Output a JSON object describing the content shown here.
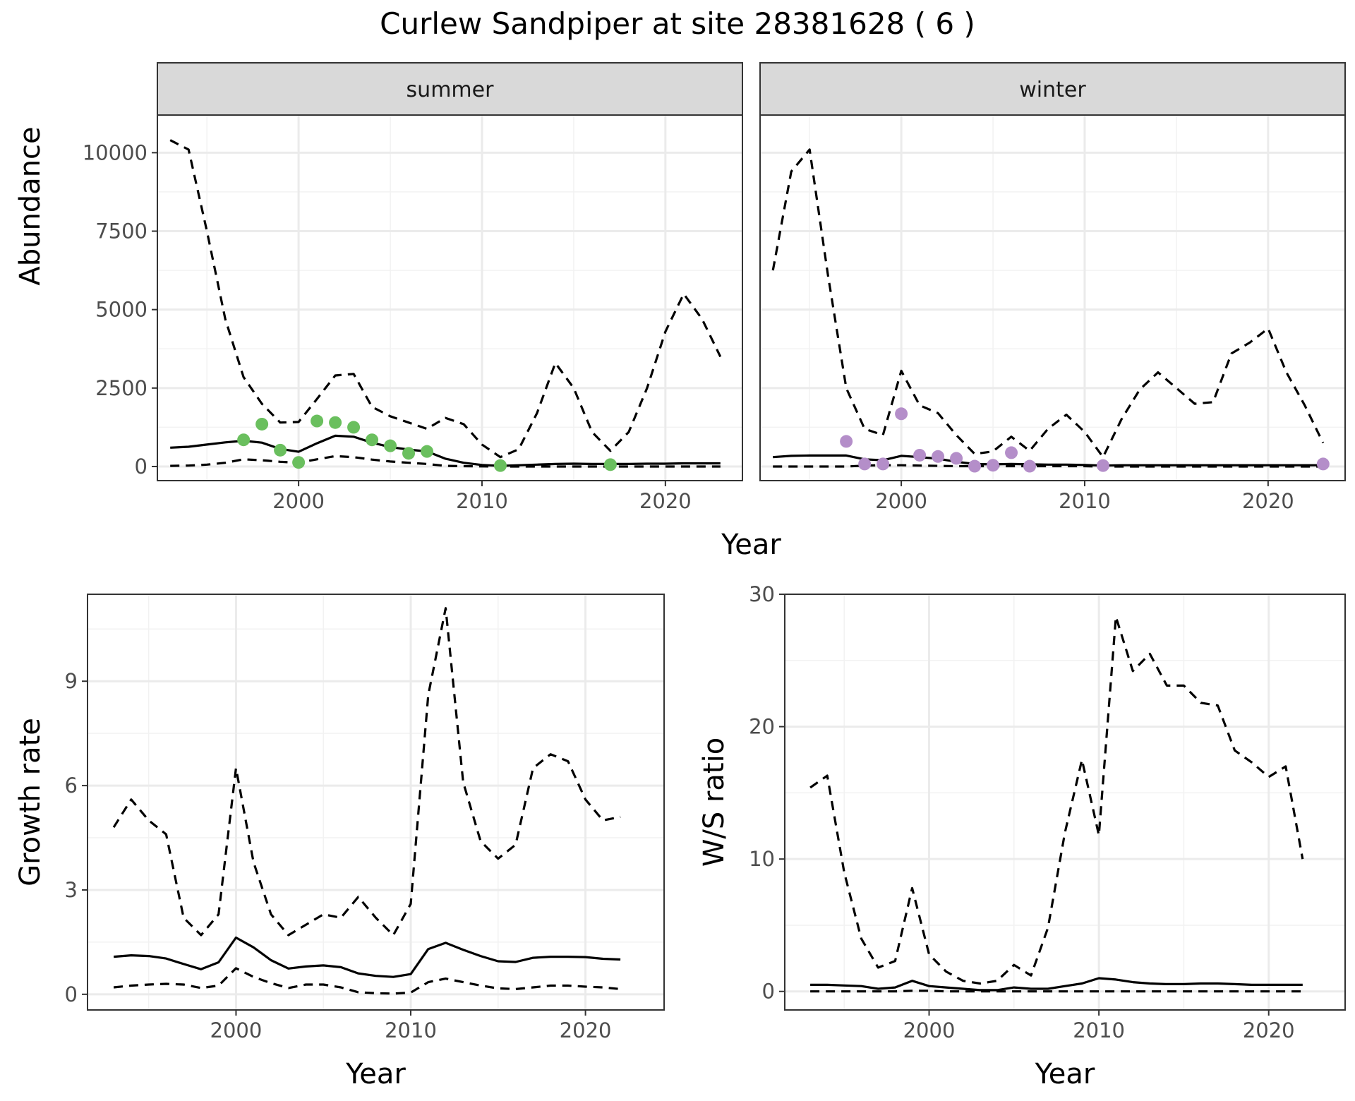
{
  "title": "Curlew Sandpiper at site 28381628 ( 6 )",
  "colors": {
    "summer_points": "#6abf5e",
    "winter_points": "#b48ec9",
    "lines": "#000000"
  },
  "chart_data": [
    {
      "id": "abundance",
      "type": "line",
      "facets": [
        "summer",
        "winter"
      ],
      "xlabel": "Year",
      "ylabel": "Abundance",
      "xlim": [
        1992.3,
        2024.2
      ],
      "ylim": [
        -450,
        11200
      ],
      "x_ticks": [
        2000,
        2010,
        2020
      ],
      "y_ticks": [
        0,
        2500,
        5000,
        7500,
        10000
      ],
      "grid": true,
      "panels": [
        {
          "facet": "summer",
          "series": [
            {
              "style": "solid",
              "x": [
                1993,
                1994,
                1995,
                1996,
                1997,
                1998,
                1999,
                2000,
                2001,
                2002,
                2003,
                2004,
                2005,
                2006,
                2007,
                2008,
                2009,
                2010,
                2011,
                2012,
                2013,
                2014,
                2015,
                2016,
                2017,
                2018,
                2019,
                2020,
                2021,
                2022,
                2023
              ],
              "y": [
                600,
                630,
                700,
                770,
                820,
                760,
                560,
                470,
                740,
                980,
                950,
                760,
                620,
                540,
                480,
                250,
                120,
                50,
                20,
                40,
                60,
                80,
                90,
                80,
                80,
                80,
                90,
                90,
                100,
                100,
                100
              ]
            },
            {
              "style": "dashed",
              "x": [
                1993,
                1994,
                1995,
                1996,
                1997,
                1998,
                1999,
                2000,
                2001,
                2002,
                2003,
                2004,
                2005,
                2006,
                2007,
                2008,
                2009,
                2010,
                2011,
                2012,
                2013,
                2014,
                2015,
                2016,
                2017,
                2018,
                2019,
                2020,
                2021,
                2022,
                2023
              ],
              "y": [
                10400,
                10100,
                7500,
                4700,
                2850,
                2000,
                1400,
                1420,
                2150,
                2900,
                2950,
                1900,
                1600,
                1400,
                1200,
                1550,
                1350,
                700,
                300,
                550,
                1700,
                3300,
                2500,
                1100,
                500,
                1100,
                2500,
                4300,
                5500,
                4700,
                3500
              ]
            },
            {
              "style": "dashed",
              "x": [
                1993,
                1994,
                1995,
                1996,
                1997,
                1998,
                1999,
                2000,
                2001,
                2002,
                2003,
                2004,
                2005,
                2006,
                2007,
                2008,
                2009,
                2010,
                2011,
                2012,
                2013,
                2014,
                2015,
                2016,
                2017,
                2018,
                2019,
                2020,
                2021,
                2022,
                2023
              ],
              "y": [
                20,
                30,
                60,
                120,
                230,
                200,
                150,
                120,
                230,
                330,
                300,
                220,
                160,
                120,
                80,
                20,
                10,
                5,
                0,
                0,
                0,
                0,
                0,
                0,
                0,
                0,
                0,
                0,
                0,
                0,
                0
              ]
            }
          ],
          "points": {
            "x": [
              1997,
              1998,
              1999,
              2000,
              2001,
              2002,
              2003,
              2004,
              2005,
              2006,
              2007,
              2011,
              2017
            ],
            "y": [
              850,
              1350,
              520,
              130,
              1450,
              1400,
              1250,
              850,
              660,
              420,
              480,
              30,
              60
            ]
          }
        },
        {
          "facet": "winter",
          "series": [
            {
              "style": "solid",
              "x": [
                1993,
                1994,
                1995,
                1996,
                1997,
                1998,
                1999,
                2000,
                2001,
                2002,
                2003,
                2004,
                2005,
                2006,
                2007,
                2008,
                2009,
                2010,
                2011,
                2012,
                2013,
                2014,
                2015,
                2016,
                2017,
                2018,
                2019,
                2020,
                2021,
                2022,
                2023
              ],
              "y": [
                300,
                340,
                350,
                350,
                350,
                230,
                200,
                340,
                300,
                250,
                150,
                80,
                70,
                80,
                70,
                60,
                60,
                50,
                30,
                40,
                40,
                40,
                40,
                40,
                40,
                40,
                40,
                40,
                40,
                40,
                40
              ]
            },
            {
              "style": "dashed",
              "x": [
                1993,
                1994,
                1995,
                1996,
                1997,
                1998,
                1999,
                2000,
                2001,
                2002,
                2003,
                2004,
                2005,
                2006,
                2007,
                2008,
                2009,
                2010,
                2011,
                2012,
                2013,
                2014,
                2015,
                2016,
                2017,
                2018,
                2019,
                2020,
                2021,
                2022,
                2023
              ],
              "y": [
                6250,
                9400,
                10100,
                6100,
                2500,
                1200,
                1000,
                3050,
                1950,
                1700,
                1000,
                400,
                480,
                950,
                500,
                1200,
                1650,
                1100,
                300,
                1500,
                2450,
                3000,
                2500,
                2000,
                2050,
                3600,
                3950,
                4400,
                3000,
                1950,
                750
              ]
            },
            {
              "style": "dashed",
              "x": [
                1993,
                1994,
                1995,
                1996,
                1997,
                1998,
                1999,
                2000,
                2001,
                2002,
                2003,
                2004,
                2005,
                2006,
                2007,
                2008,
                2009,
                2010,
                2011,
                2012,
                2013,
                2014,
                2015,
                2016,
                2017,
                2018,
                2019,
                2020,
                2021,
                2022,
                2023
              ],
              "y": [
                0,
                0,
                0,
                0,
                0,
                30,
                40,
                40,
                30,
                20,
                10,
                10,
                10,
                10,
                10,
                10,
                10,
                10,
                0,
                0,
                0,
                0,
                0,
                0,
                0,
                0,
                0,
                0,
                0,
                0,
                0
              ]
            }
          ],
          "points": {
            "x": [
              1997,
              1998,
              1999,
              2000,
              2001,
              2002,
              2003,
              2004,
              2005,
              2006,
              2007,
              2011,
              2023
            ],
            "y": [
              800,
              80,
              80,
              1680,
              360,
              320,
              260,
              10,
              40,
              440,
              10,
              30,
              80
            ]
          }
        }
      ]
    },
    {
      "id": "growth",
      "type": "line",
      "xlabel": "Year",
      "ylabel": "Growth rate",
      "xlim": [
        1991.5,
        2024.5
      ],
      "ylim": [
        -0.45,
        11.5
      ],
      "x_ticks": [
        2000,
        2010,
        2020
      ],
      "y_ticks": [
        0,
        3,
        6,
        9
      ],
      "grid": true,
      "series": [
        {
          "style": "solid",
          "x": [
            1993,
            1994,
            1995,
            1996,
            1997,
            1998,
            1999,
            2000,
            2001,
            2002,
            2003,
            2004,
            2005,
            2006,
            2007,
            2008,
            2009,
            2010,
            2011,
            2012,
            2013,
            2014,
            2015,
            2016,
            2017,
            2018,
            2019,
            2020,
            2021,
            2022
          ],
          "y": [
            1.08,
            1.12,
            1.1,
            1.03,
            0.87,
            0.72,
            0.92,
            1.63,
            1.35,
            0.98,
            0.74,
            0.8,
            0.83,
            0.78,
            0.6,
            0.53,
            0.5,
            0.58,
            1.3,
            1.48,
            1.28,
            1.1,
            0.95,
            0.93,
            1.05,
            1.08,
            1.08,
            1.07,
            1.02,
            1.0
          ]
        },
        {
          "style": "dashed",
          "x": [
            1993,
            1994,
            1995,
            1996,
            1997,
            1998,
            1999,
            2000,
            2001,
            2002,
            2003,
            2004,
            2005,
            2006,
            2007,
            2008,
            2009,
            2010,
            2011,
            2012,
            2013,
            2014,
            2015,
            2016,
            2017,
            2018,
            2019,
            2020,
            2021,
            2022
          ],
          "y": [
            4.8,
            5.6,
            5.0,
            4.6,
            2.2,
            1.7,
            2.3,
            6.5,
            3.8,
            2.3,
            1.7,
            2.0,
            2.3,
            2.2,
            2.8,
            2.2,
            1.7,
            2.6,
            8.6,
            11.1,
            6.1,
            4.4,
            3.9,
            4.3,
            6.5,
            6.9,
            6.7,
            5.6,
            5.0,
            5.1
          ]
        },
        {
          "style": "dashed",
          "x": [
            1993,
            1994,
            1995,
            1996,
            1997,
            1998,
            1999,
            2000,
            2001,
            2002,
            2003,
            2004,
            2005,
            2006,
            2007,
            2008,
            2009,
            2010,
            2011,
            2012,
            2013,
            2014,
            2015,
            2016,
            2017,
            2018,
            2019,
            2020,
            2021,
            2022
          ],
          "y": [
            0.2,
            0.25,
            0.28,
            0.3,
            0.28,
            0.18,
            0.25,
            0.75,
            0.5,
            0.32,
            0.18,
            0.28,
            0.28,
            0.2,
            0.06,
            0.03,
            0.02,
            0.05,
            0.35,
            0.45,
            0.35,
            0.25,
            0.17,
            0.15,
            0.2,
            0.25,
            0.25,
            0.22,
            0.2,
            0.15
          ]
        }
      ]
    },
    {
      "id": "ws_ratio",
      "type": "line",
      "xlabel": "Year",
      "ylabel": "W/S ratio",
      "xlim": [
        1991.5,
        2024.5
      ],
      "ylim": [
        -1.4,
        30.0
      ],
      "x_ticks": [
        2000,
        2010,
        2020
      ],
      "y_ticks": [
        0,
        10,
        20,
        30
      ],
      "grid": true,
      "series": [
        {
          "style": "solid",
          "x": [
            1993,
            1994,
            1995,
            1996,
            1997,
            1998,
            1999,
            2000,
            2001,
            2002,
            2003,
            2004,
            2005,
            2006,
            2007,
            2008,
            2009,
            2010,
            2011,
            2012,
            2013,
            2014,
            2015,
            2016,
            2017,
            2018,
            2019,
            2020,
            2021,
            2022
          ],
          "y": [
            0.5,
            0.5,
            0.45,
            0.4,
            0.2,
            0.3,
            0.8,
            0.4,
            0.3,
            0.2,
            0.1,
            0.1,
            0.3,
            0.2,
            0.2,
            0.4,
            0.6,
            1.0,
            0.9,
            0.7,
            0.6,
            0.55,
            0.55,
            0.6,
            0.6,
            0.55,
            0.5,
            0.5,
            0.5,
            0.5
          ]
        },
        {
          "style": "dashed",
          "x": [
            1993,
            1994,
            1995,
            1996,
            1997,
            1998,
            1999,
            2000,
            2001,
            2002,
            2003,
            2004,
            2005,
            2006,
            2007,
            2008,
            2009,
            2010,
            2011,
            2012,
            2013,
            2014,
            2015,
            2016,
            2017,
            2018,
            2019,
            2020,
            2021,
            2022
          ],
          "y": [
            15.4,
            16.3,
            9.0,
            4.0,
            1.8,
            2.3,
            7.8,
            2.8,
            1.5,
            0.8,
            0.6,
            0.8,
            2.0,
            1.2,
            4.8,
            12.0,
            17.5,
            11.8,
            28.3,
            24.2,
            25.5,
            23.1,
            23.1,
            21.8,
            21.6,
            18.2,
            17.3,
            16.2,
            17.0,
            10.0
          ]
        },
        {
          "style": "dashed",
          "x": [
            1993,
            1994,
            1995,
            1996,
            1997,
            1998,
            1999,
            2000,
            2001,
            2002,
            2003,
            2004,
            2005,
            2006,
            2007,
            2008,
            2009,
            2010,
            2011,
            2012,
            2013,
            2014,
            2015,
            2016,
            2017,
            2018,
            2019,
            2020,
            2021,
            2022
          ],
          "y": [
            0,
            0,
            0,
            0,
            0,
            0,
            0.05,
            0.05,
            0,
            0,
            0,
            0,
            0,
            0,
            0,
            0,
            0,
            0,
            0,
            0,
            0,
            0,
            0,
            0,
            0,
            0,
            0,
            0,
            0,
            0
          ]
        }
      ]
    }
  ]
}
